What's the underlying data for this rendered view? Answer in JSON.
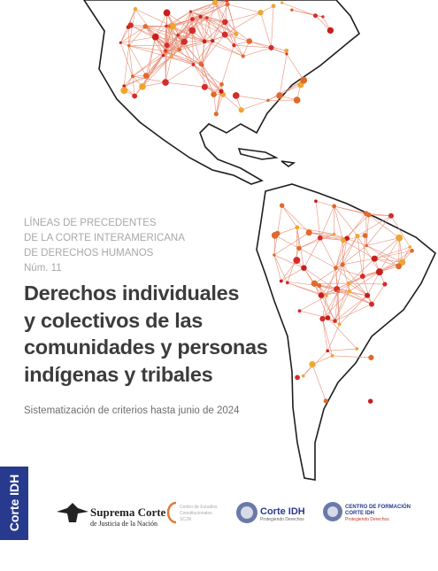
{
  "series_heading": {
    "lines": [
      "LÍNEAS DE PRECEDENTES",
      "DE LA CORTE INTERAMERICANA",
      "DE DERECHOS HUMANOS",
      "Núm. 11"
    ]
  },
  "title": {
    "lines": [
      "Derechos individuales",
      "y colectivos de las",
      "comunidades y personas",
      "indígenas y tribales"
    ]
  },
  "subtitle": "Sistematización de criterios hasta junio de 2024",
  "side_tab": "Corte IDH",
  "logos": [
    {
      "lines": [
        "Suprema Corte",
        "de Justicia de la Nación"
      ]
    },
    {
      "lines": [
        "Centro de Estudios",
        "Constitucionales",
        "SCJN"
      ]
    },
    {
      "lines": [
        "Corte IDH",
        "Protegiendo Derechos"
      ]
    },
    {
      "lines": [
        "CENTRO DE FORMACIÓN",
        "CORTE IDH",
        "Protegiendo Derechos"
      ]
    }
  ]
}
